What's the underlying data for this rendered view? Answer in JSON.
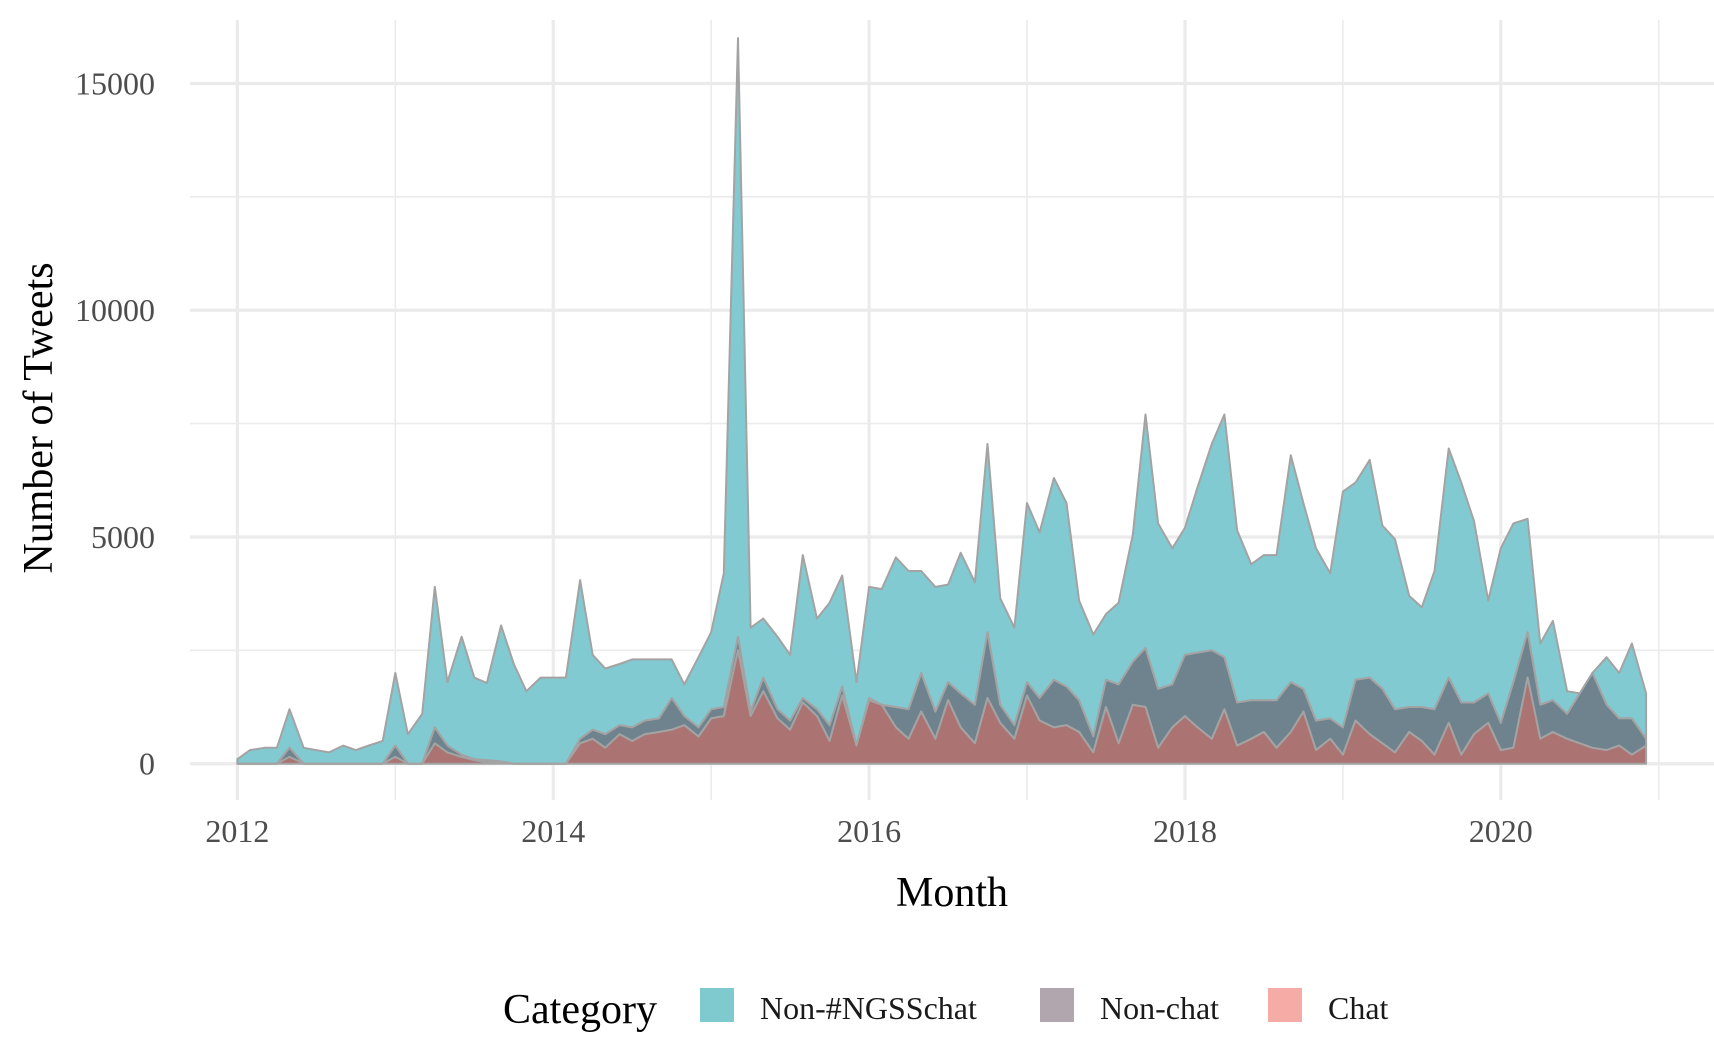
{
  "chart_data": {
    "type": "area",
    "stacked": true,
    "xlabel": "Month",
    "ylabel": "Number of Tweets",
    "xlim": [
      2011.7,
      2021.35
    ],
    "ylim": [
      -800,
      16400
    ],
    "x_ticks": [
      2012,
      2014,
      2016,
      2018,
      2020
    ],
    "x_tick_labels": [
      "2012",
      "2014",
      "2016",
      "2018",
      "2020"
    ],
    "y_ticks": [
      0,
      5000,
      10000,
      15000
    ],
    "y_tick_labels": [
      "0",
      "5000",
      "10000",
      "15000"
    ],
    "grid": true,
    "legend": {
      "title": "Category",
      "position": "bottom",
      "entries": [
        "Non-#NGSSchat",
        "Non-chat",
        "Chat"
      ]
    },
    "colors": {
      "Non-#NGSSchat": "#7ec8cf",
      "Non-chat": "#6a7f8a",
      "Chat": "#a8706e",
      "legend_Non-#NGSSchat": "#7fcacf",
      "legend_Non-chat": "#b1a6ad",
      "legend_Chat": "#f5aca7",
      "outline": "#a3a3a3"
    },
    "x": [
      2012.0,
      2012.08,
      2012.17,
      2012.25,
      2012.33,
      2012.42,
      2012.5,
      2012.58,
      2012.67,
      2012.75,
      2012.83,
      2012.92,
      2013.0,
      2013.08,
      2013.17,
      2013.25,
      2013.33,
      2013.42,
      2013.5,
      2013.58,
      2013.67,
      2013.75,
      2013.83,
      2013.92,
      2014.0,
      2014.08,
      2014.17,
      2014.25,
      2014.33,
      2014.42,
      2014.5,
      2014.58,
      2014.67,
      2014.75,
      2014.83,
      2014.92,
      2015.0,
      2015.08,
      2015.17,
      2015.25,
      2015.33,
      2015.42,
      2015.5,
      2015.58,
      2015.67,
      2015.75,
      2015.83,
      2015.92,
      2016.0,
      2016.08,
      2016.17,
      2016.25,
      2016.33,
      2016.42,
      2016.5,
      2016.58,
      2016.67,
      2016.75,
      2016.83,
      2016.92,
      2017.0,
      2017.08,
      2017.17,
      2017.25,
      2017.33,
      2017.42,
      2017.5,
      2017.58,
      2017.67,
      2017.75,
      2017.83,
      2017.92,
      2018.0,
      2018.08,
      2018.17,
      2018.25,
      2018.33,
      2018.42,
      2018.5,
      2018.58,
      2018.67,
      2018.75,
      2018.83,
      2018.92,
      2019.0,
      2019.08,
      2019.17,
      2019.25,
      2019.33,
      2019.42,
      2019.5,
      2019.58,
      2019.67,
      2019.75,
      2019.83,
      2019.92,
      2020.0,
      2020.08,
      2020.17,
      2020.25,
      2020.33,
      2020.42,
      2020.5,
      2020.58,
      2020.67,
      2020.75,
      2020.83,
      2020.92
    ],
    "series": [
      {
        "name": "Chat",
        "values": [
          0,
          0,
          0,
          0,
          150,
          0,
          0,
          0,
          0,
          0,
          0,
          0,
          150,
          0,
          0,
          450,
          250,
          150,
          80,
          30,
          30,
          0,
          0,
          0,
          0,
          0,
          450,
          550,
          350,
          650,
          500,
          650,
          700,
          750,
          850,
          600,
          1000,
          1050,
          2500,
          1050,
          1600,
          1000,
          750,
          1350,
          1050,
          500,
          1500,
          400,
          1400,
          1300,
          800,
          550,
          1150,
          550,
          1400,
          800,
          450,
          1450,
          900,
          550,
          1500,
          950,
          800,
          850,
          700,
          250,
          1250,
          450,
          1300,
          1250,
          350,
          800,
          1050,
          800,
          550,
          1200,
          400,
          550,
          700,
          350,
          700,
          1150,
          300,
          550,
          200,
          950,
          650,
          450,
          250,
          700,
          500,
          200,
          900,
          200,
          650,
          900,
          300,
          350,
          1900,
          550,
          700,
          550,
          450,
          350,
          300,
          400,
          200,
          400
        ]
      },
      {
        "name": "Non-chat",
        "values": [
          0,
          0,
          0,
          0,
          200,
          0,
          0,
          0,
          0,
          0,
          0,
          0,
          250,
          0,
          0,
          350,
          150,
          50,
          20,
          50,
          20,
          0,
          0,
          0,
          0,
          0,
          100,
          200,
          300,
          200,
          300,
          300,
          300,
          700,
          200,
          200,
          200,
          200,
          300,
          100,
          300,
          200,
          200,
          100,
          150,
          350,
          200,
          0,
          50,
          0,
          450,
          650,
          850,
          600,
          400,
          750,
          850,
          1450,
          400,
          300,
          300,
          500,
          1050,
          850,
          700,
          350,
          600,
          1300,
          950,
          1300,
          1300,
          950,
          1350,
          1650,
          1950,
          1150,
          950,
          850,
          700,
          1050,
          1100,
          500,
          650,
          450,
          600,
          900,
          1250,
          1200,
          950,
          550,
          750,
          1000,
          1000,
          1150,
          700,
          650,
          600,
          1450,
          1000,
          750,
          700,
          550,
          1100,
          1650,
          1000,
          600,
          800,
          150
        ]
      },
      {
        "name": "Non-#NGSSchat",
        "values": [
          100,
          300,
          350,
          350,
          850,
          350,
          300,
          250,
          400,
          300,
          400,
          500,
          1600,
          650,
          1100,
          3100,
          1400,
          2600,
          1800,
          1700,
          3000,
          2200,
          1600,
          1900,
          1900,
          1900,
          3500,
          1650,
          1450,
          1350,
          1500,
          1350,
          1300,
          850,
          700,
          1550,
          1700,
          2950,
          13200,
          1850,
          1300,
          1600,
          1450,
          3150,
          2000,
          2700,
          2450,
          1400,
          2450,
          2550,
          3300,
          3050,
          2250,
          2750,
          2150,
          3100,
          2700,
          4150,
          2350,
          2150,
          3950,
          3650,
          4450,
          4050,
          2200,
          2250,
          1450,
          1800,
          2800,
          5150,
          3650,
          3000,
          2800,
          3650,
          4550,
          5350,
          3800,
          3000,
          3200,
          3200,
          5000,
          4100,
          3800,
          3200,
          5200,
          4350,
          4800,
          3600,
          3750,
          2450,
          2200,
          3050,
          5050,
          4850,
          4000,
          2050,
          3850,
          3500,
          2500,
          1350,
          1750,
          500,
          0,
          0,
          1050,
          1000,
          1650,
          1000
        ]
      }
    ]
  }
}
